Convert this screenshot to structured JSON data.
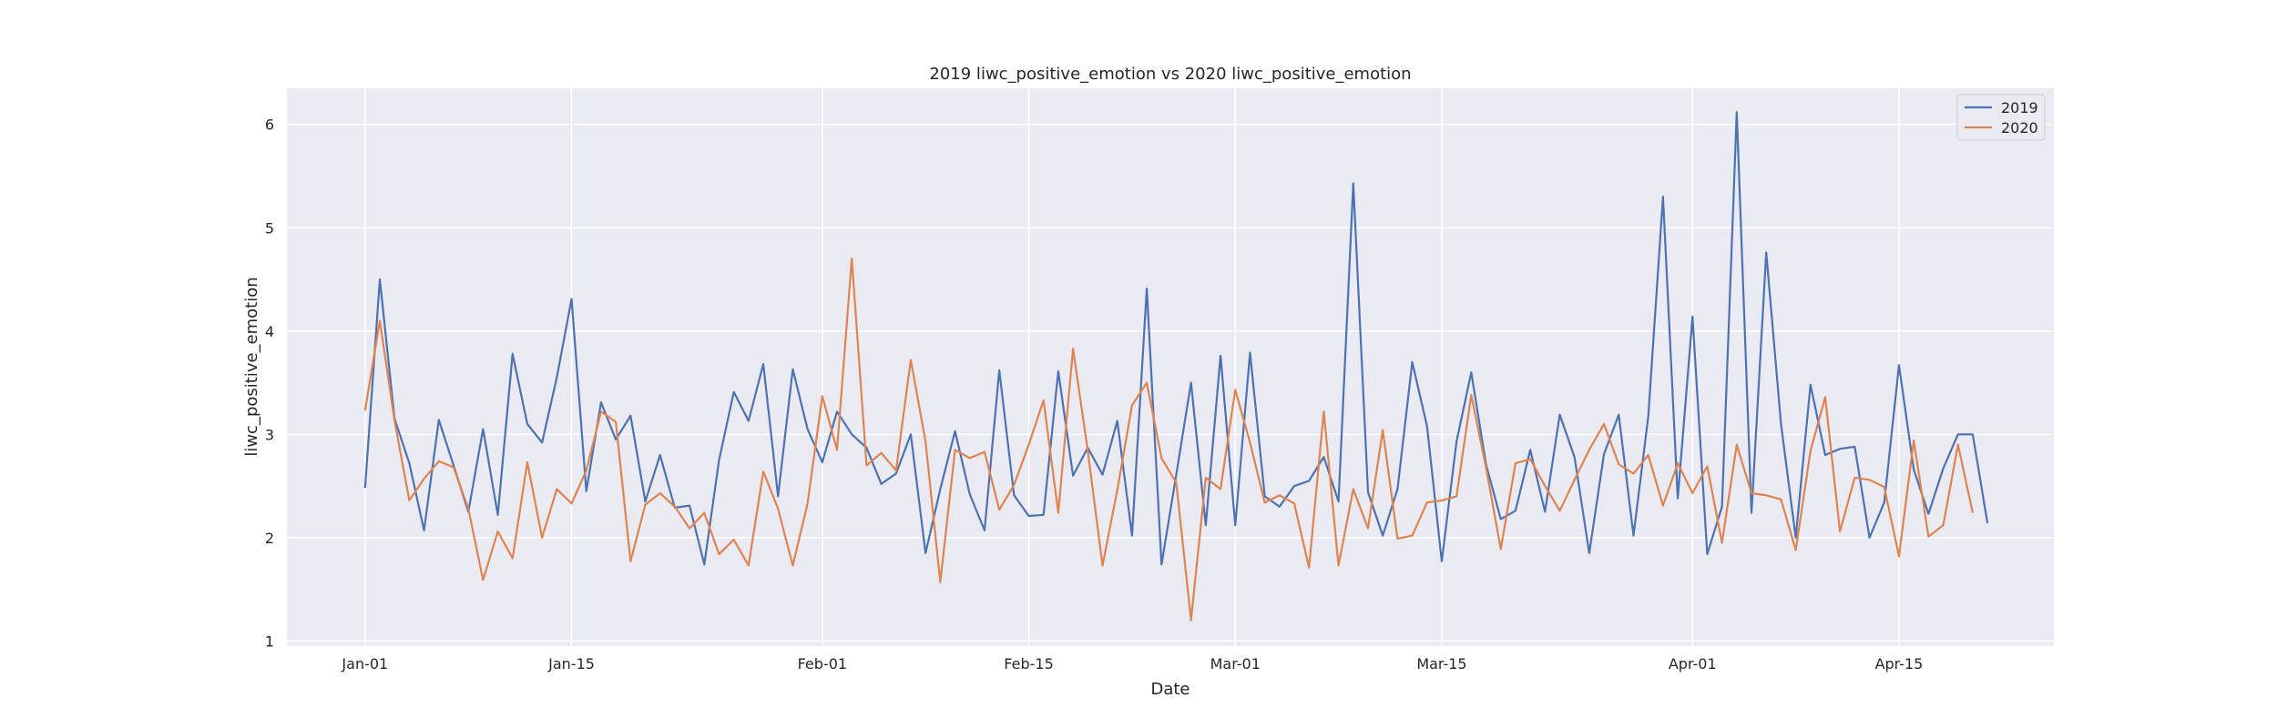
{
  "chart_data": {
    "type": "line",
    "title": "2019 liwc_positive_emotion vs 2020 liwc_positive_emotion",
    "xlabel": "Date",
    "ylabel": "liwc_positive_emotion",
    "x_start": "Jan-01",
    "x_step_days": 1,
    "x_ticks": [
      {
        "label": "Jan-01",
        "day": 0
      },
      {
        "label": "Jan-15",
        "day": 14
      },
      {
        "label": "Feb-01",
        "day": 31
      },
      {
        "label": "Feb-15",
        "day": 45
      },
      {
        "label": "Mar-01",
        "day": 59
      },
      {
        "label": "Mar-15",
        "day": 73
      },
      {
        "label": "Apr-01",
        "day": 90
      },
      {
        "label": "Apr-15",
        "day": 104
      }
    ],
    "y_ticks": [
      1,
      2,
      3,
      4,
      5,
      6
    ],
    "ylim": [
      0.95,
      6.35
    ],
    "xlim": [
      -5.3,
      114.5
    ],
    "grid": true,
    "legend_position": "top-right",
    "series": [
      {
        "name": "2019",
        "color": "#4c72b0",
        "values": [
          2.48,
          4.5,
          3.15,
          2.72,
          2.07,
          3.14,
          2.7,
          2.25,
          3.05,
          2.22,
          3.78,
          3.1,
          2.92,
          3.55,
          4.31,
          2.45,
          3.31,
          2.95,
          3.18,
          2.35,
          2.8,
          2.29,
          2.31,
          1.74,
          2.75,
          3.41,
          3.13,
          3.68,
          2.4,
          3.63,
          3.05,
          2.73,
          3.22,
          3.0,
          2.87,
          2.52,
          2.62,
          3.0,
          1.85,
          2.47,
          3.03,
          2.42,
          2.07,
          3.62,
          2.41,
          2.21,
          2.22,
          3.61,
          2.6,
          2.87,
          2.61,
          3.13,
          2.02,
          4.41,
          1.74,
          2.61,
          3.5,
          2.12,
          3.76,
          2.12,
          3.79,
          2.4,
          2.3,
          2.5,
          2.55,
          2.78,
          2.35,
          5.43,
          2.44,
          2.02,
          2.47,
          3.7,
          3.08,
          1.77,
          2.93,
          3.6,
          2.71,
          2.18,
          2.26,
          2.85,
          2.25,
          3.19,
          2.78,
          1.85,
          2.81,
          3.19,
          2.02,
          3.17,
          5.3,
          2.38,
          4.14,
          1.84,
          2.3,
          6.12,
          2.24,
          4.76,
          3.1,
          2.0,
          3.48,
          2.8,
          2.86,
          2.88,
          2.0,
          2.34,
          3.67,
          2.66,
          2.23,
          2.67,
          3.0,
          3.0,
          2.14
        ]
      },
      {
        "name": "2020",
        "color": "#dd8452",
        "values": [
          3.23,
          4.1,
          3.13,
          2.36,
          2.57,
          2.74,
          2.68,
          2.28,
          1.59,
          2.06,
          1.8,
          2.73,
          2.0,
          2.47,
          2.33,
          2.65,
          3.22,
          3.12,
          1.77,
          2.32,
          2.43,
          2.3,
          2.09,
          2.24,
          1.84,
          1.98,
          1.73,
          2.64,
          2.28,
          1.73,
          2.33,
          3.37,
          2.85,
          4.7,
          2.7,
          2.82,
          2.65,
          3.72,
          2.93,
          1.57,
          2.85,
          2.77,
          2.83,
          2.27,
          2.51,
          2.9,
          3.33,
          2.24,
          3.83,
          2.84,
          1.73,
          2.46,
          3.28,
          3.5,
          2.77,
          2.53,
          1.2,
          2.58,
          2.47,
          3.43,
          2.92,
          2.34,
          2.41,
          2.33,
          1.71,
          3.22,
          1.73,
          2.47,
          2.09,
          3.04,
          1.99,
          2.02,
          2.34,
          2.36,
          2.4,
          3.38,
          2.68,
          1.89,
          2.72,
          2.76,
          2.5,
          2.26,
          2.56,
          2.85,
          3.1,
          2.71,
          2.62,
          2.8,
          2.31,
          2.72,
          2.43,
          2.69,
          1.95,
          2.9,
          2.43,
          2.41,
          2.37,
          1.88,
          2.84,
          3.36,
          2.06,
          2.58,
          2.56,
          2.49,
          1.82,
          2.94,
          2.01,
          2.12,
          2.9,
          2.24
        ]
      }
    ]
  }
}
